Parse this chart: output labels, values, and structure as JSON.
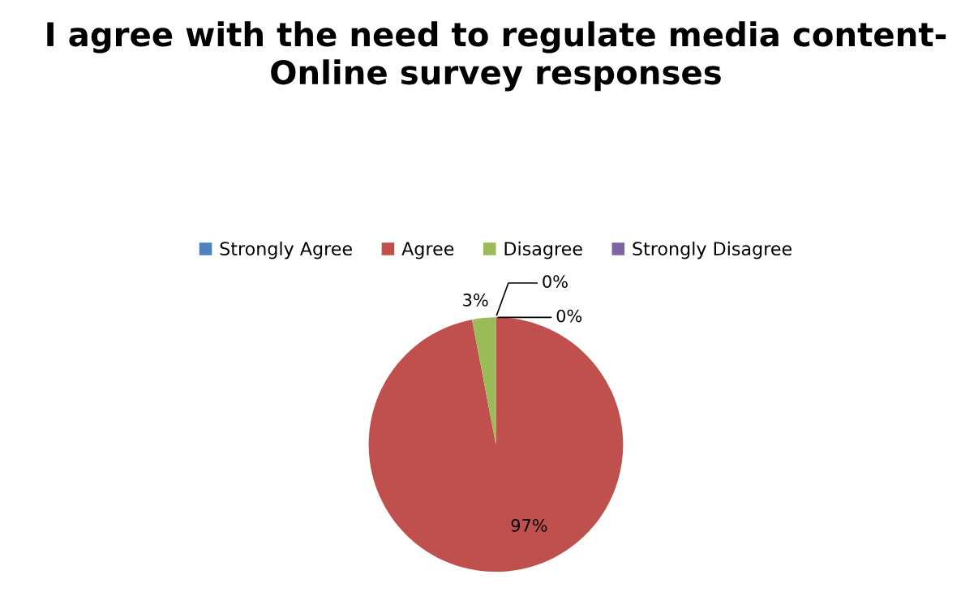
{
  "chart_data": {
    "type": "pie",
    "title": "I agree with the need to regulate media content- Online survey responses",
    "categories": [
      "Strongly Agree",
      "Agree",
      "Disagree",
      "Strongly Disagree"
    ],
    "values": [
      0,
      97,
      3,
      0
    ],
    "colors": [
      "#4f81bd",
      "#c0504d",
      "#9bbb59",
      "#8064a2"
    ],
    "value_labels": [
      "0%",
      "97%",
      "3%",
      "0%"
    ],
    "legend": "top"
  }
}
